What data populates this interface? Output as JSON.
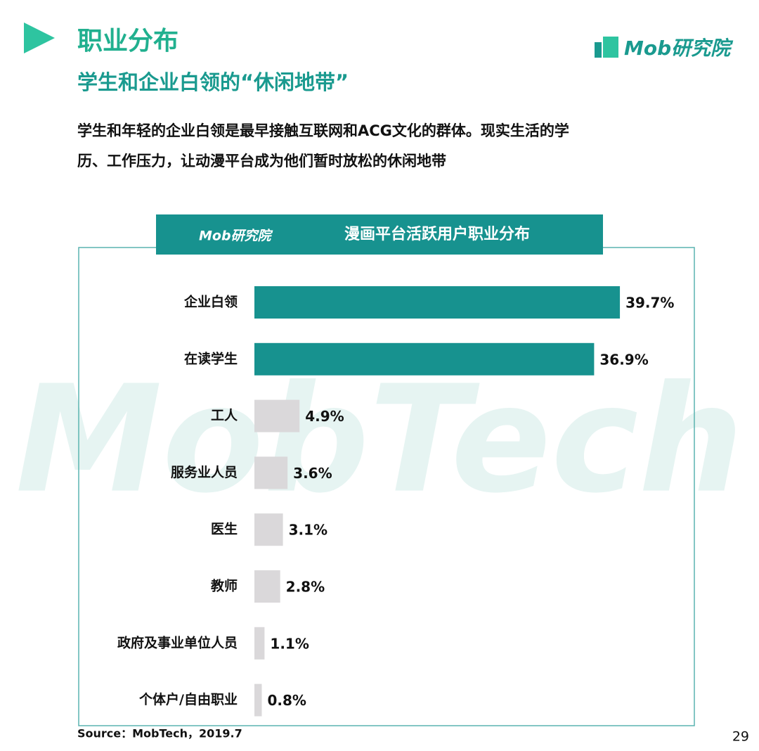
{
  "title": "职业分布",
  "subtitle": "学生和企业白领的“休闲地带”",
  "description": [
    "学生和年轻的企业白领是最早接触互联网和ACG文化的群体。现实生活的学",
    "历、工作压力，让动漫平台成为他们暂时放松的休闲地带"
  ],
  "brand": "Mob研究院",
  "watermark": "MobTech",
  "source": "Source：MobTech，2019.7",
  "page_number": "29",
  "chart_data": {
    "type": "hbar",
    "title": "漫画平台活跃用户职业分布",
    "brand": "Mob研究院",
    "categories": [
      "企业白领",
      "在读学生",
      "工人",
      "服务业人员",
      "医生",
      "教师",
      "政府及事业单位人员",
      "个体户/自由职业"
    ],
    "values": [
      39.7,
      36.9,
      4.9,
      3.6,
      3.1,
      2.8,
      1.1,
      0.8
    ],
    "value_labels": [
      "39.7%",
      "36.9%",
      "4.9%",
      "3.6%",
      "3.1%",
      "2.8%",
      "1.1%",
      "0.8%"
    ],
    "colors": [
      "#17928f",
      "#17928f",
      "#dad8da",
      "#dad8da",
      "#dad8da",
      "#dad8da",
      "#dad8da",
      "#dad8da"
    ]
  }
}
